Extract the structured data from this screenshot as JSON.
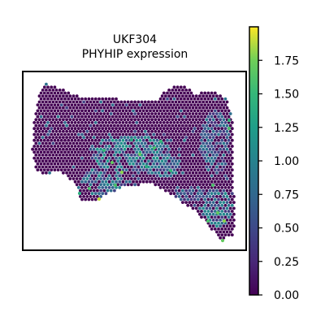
{
  "chart_data": {
    "type": "scatter",
    "title_line1": "UKF304",
    "title_line2": "PHYHIP expression",
    "xlabel": "",
    "ylabel": "",
    "grid": false,
    "colormap": "viridis",
    "colorbar": {
      "label": "",
      "range": [
        0,
        2.0
      ],
      "ticks": [
        0.0,
        0.25,
        0.5,
        0.75,
        1.0,
        1.25,
        1.5,
        1.75
      ],
      "tick_labels": [
        "0.00",
        "0.25",
        "0.50",
        "0.75",
        "1.00",
        "1.25",
        "1.50",
        "1.75"
      ]
    },
    "spot_regions": {
      "background_value": 0.0,
      "tissue_outline": [
        [
          42,
          145
        ],
        [
          48,
          118
        ],
        [
          55,
          102
        ],
        [
          72,
          108
        ],
        [
          95,
          118
        ],
        [
          130,
          120
        ],
        [
          160,
          124
        ],
        [
          195,
          124
        ],
        [
          205,
          110
        ],
        [
          225,
          104
        ],
        [
          240,
          115
        ],
        [
          262,
          113
        ],
        [
          278,
          120
        ],
        [
          286,
          148
        ],
        [
          286,
          190
        ],
        [
          288,
          240
        ],
        [
          290,
          272
        ],
        [
          286,
          290
        ],
        [
          272,
          295
        ],
        [
          258,
          280
        ],
        [
          240,
          258
        ],
        [
          222,
          248
        ],
        [
          206,
          236
        ],
        [
          185,
          226
        ],
        [
          150,
          230
        ],
        [
          120,
          246
        ],
        [
          100,
          246
        ],
        [
          95,
          232
        ],
        [
          82,
          215
        ],
        [
          72,
          210
        ],
        [
          55,
          215
        ],
        [
          45,
          210
        ],
        [
          40,
          185
        ]
      ],
      "high_regions": [
        {
          "cx": 160,
          "cy": 188,
          "rx": 50,
          "ry": 22,
          "value": 0.95
        },
        {
          "cx": 128,
          "cy": 225,
          "rx": 28,
          "ry": 20,
          "value": 0.85
        },
        {
          "cx": 200,
          "cy": 205,
          "rx": 22,
          "ry": 14,
          "value": 0.8
        },
        {
          "cx": 265,
          "cy": 175,
          "rx": 18,
          "ry": 40,
          "value": 0.7
        },
        {
          "cx": 268,
          "cy": 255,
          "rx": 18,
          "ry": 24,
          "value": 0.85
        },
        {
          "cx": 232,
          "cy": 238,
          "rx": 20,
          "ry": 10,
          "value": 0.7
        }
      ],
      "bright_spots": [
        [
          128,
          185,
          1.5
        ],
        [
          172,
          190,
          1.7
        ],
        [
          150,
          212,
          1.8
        ],
        [
          110,
          232,
          1.6
        ],
        [
          122,
          245,
          1.9
        ],
        [
          190,
          182,
          1.6
        ],
        [
          162,
          172,
          1.4
        ],
        [
          282,
          158,
          1.6
        ],
        [
          262,
          228,
          1.6
        ],
        [
          276,
          272,
          1.8
        ],
        [
          268,
          262,
          1.7
        ],
        [
          282,
          148,
          1.5
        ],
        [
          210,
          210,
          1.5
        ],
        [
          142,
          228,
          1.6
        ],
        [
          98,
          238,
          1.4
        ],
        [
          256,
          272,
          1.6
        ],
        [
          274,
          296,
          1.7
        ],
        [
          198,
          174,
          1.5
        ],
        [
          138,
          200,
          1.7
        ],
        [
          180,
          205,
          1.4
        ]
      ]
    }
  }
}
